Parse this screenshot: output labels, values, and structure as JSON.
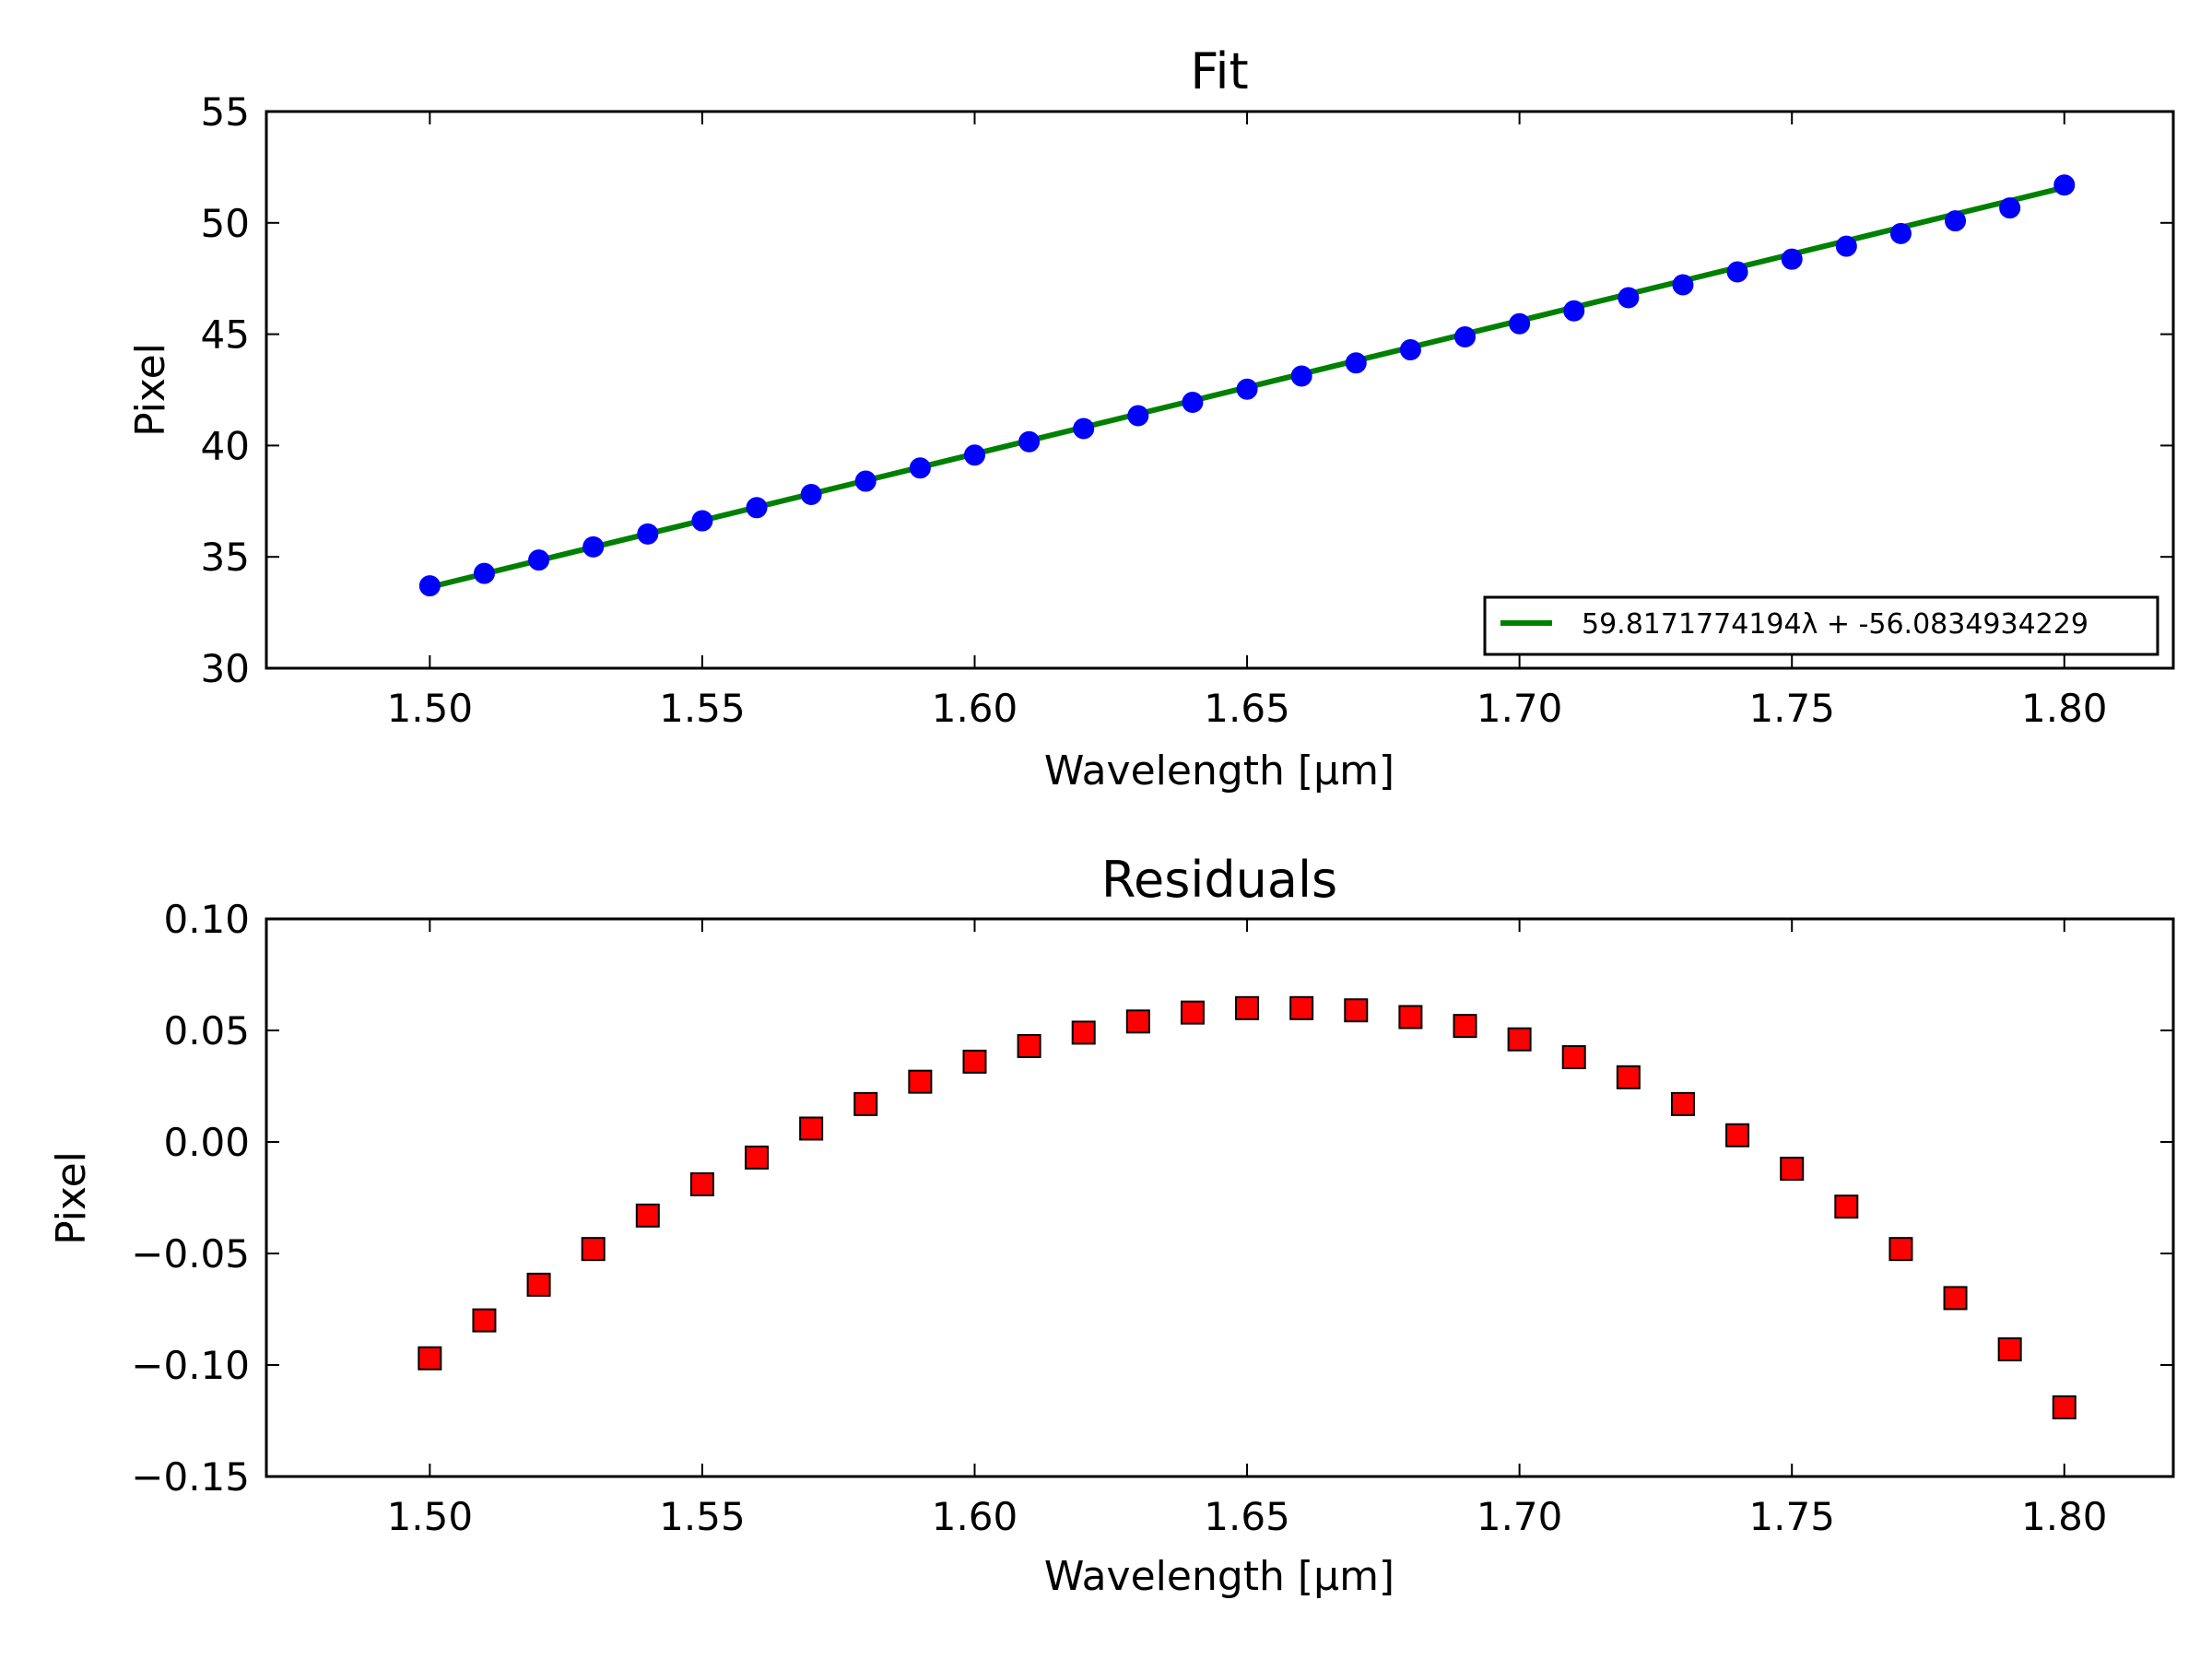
{
  "chart_data": [
    {
      "type": "line",
      "title": "Fit",
      "xlabel": "Wavelength [μm]",
      "ylabel": "Pixel",
      "xlim": [
        1.47,
        1.82
      ],
      "ylim": [
        30,
        55
      ],
      "x_ticks": [
        "1.50",
        "1.55",
        "1.60",
        "1.65",
        "1.70",
        "1.75",
        "1.80"
      ],
      "y_ticks": [
        "30",
        "35",
        "40",
        "45",
        "50",
        "55"
      ],
      "grid": false,
      "legend_position": "lower-right",
      "series": [
        {
          "name": "59.8171774194λ + -56.0834934229",
          "kind": "line",
          "color": "#008000",
          "x": [
            1.5,
            1.8
          ],
          "y": [
            33.6423,
            51.5875
          ]
        },
        {
          "kind": "points",
          "marker": "circle",
          "color": "#0000ff",
          "x": [
            1.5,
            1.51,
            1.52,
            1.53,
            1.54,
            1.55,
            1.56,
            1.57,
            1.58,
            1.59,
            1.6,
            1.61,
            1.62,
            1.63,
            1.64,
            1.65,
            1.66,
            1.67,
            1.68,
            1.69,
            1.7,
            1.71,
            1.72,
            1.73,
            1.74,
            1.75,
            1.76,
            1.77,
            1.78,
            1.79,
            1.8
          ],
          "y": [
            33.7,
            34.26,
            34.86,
            35.45,
            36.03,
            36.62,
            37.21,
            37.8,
            38.4,
            38.99,
            39.57,
            40.17,
            40.76,
            41.34,
            41.94,
            42.53,
            43.12,
            43.71,
            44.3,
            44.88,
            45.47,
            46.05,
            46.64,
            47.22,
            47.8,
            48.37,
            48.95,
            49.52,
            50.09,
            50.67,
            51.7
          ]
        }
      ]
    },
    {
      "type": "scatter",
      "title": "Residuals",
      "xlabel": "Wavelength [μm]",
      "ylabel": "Pixel",
      "xlim": [
        1.47,
        1.82
      ],
      "ylim": [
        -0.15,
        0.1
      ],
      "x_ticks": [
        "1.50",
        "1.55",
        "1.60",
        "1.65",
        "1.70",
        "1.75",
        "1.80"
      ],
      "y_ticks": [
        "−0.15",
        "−0.10",
        "−0.05",
        "0.00",
        "0.05",
        "0.10"
      ],
      "grid": false,
      "series": [
        {
          "kind": "points",
          "marker": "square",
          "color": "#ff0000",
          "x": [
            1.5,
            1.51,
            1.52,
            1.53,
            1.54,
            1.55,
            1.56,
            1.57,
            1.58,
            1.59,
            1.6,
            1.61,
            1.62,
            1.63,
            1.64,
            1.65,
            1.66,
            1.67,
            1.68,
            1.69,
            1.7,
            1.71,
            1.72,
            1.73,
            1.74,
            1.75,
            1.76,
            1.77,
            1.78,
            1.79,
            1.8
          ],
          "y": [
            -0.097,
            -0.08,
            -0.064,
            -0.048,
            -0.033,
            -0.019,
            -0.007,
            0.006,
            0.017,
            0.027,
            0.036,
            0.043,
            0.049,
            0.054,
            0.058,
            0.06,
            0.06,
            0.059,
            0.056,
            0.052,
            0.046,
            0.038,
            0.029,
            0.017,
            0.003,
            -0.012,
            -0.029,
            -0.048,
            -0.07,
            -0.093,
            -0.119
          ]
        }
      ]
    }
  ]
}
